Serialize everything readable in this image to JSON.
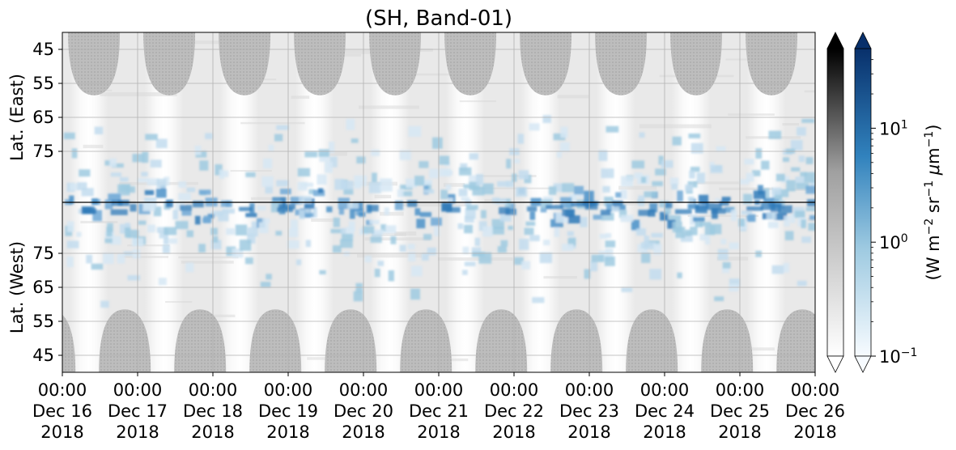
{
  "chart_data": {
    "type": "heatmap",
    "title": "(SH, Band-01)",
    "x_axis": {
      "ticks": [
        {
          "time": "00:00",
          "date": "Dec 16",
          "year": "2018"
        },
        {
          "time": "00:00",
          "date": "Dec 17",
          "year": "2018"
        },
        {
          "time": "00:00",
          "date": "Dec 18",
          "year": "2018"
        },
        {
          "time": "00:00",
          "date": "Dec 19",
          "year": "2018"
        },
        {
          "time": "00:00",
          "date": "Dec 20",
          "year": "2018"
        },
        {
          "time": "00:00",
          "date": "Dec 21",
          "year": "2018"
        },
        {
          "time": "00:00",
          "date": "Dec 22",
          "year": "2018"
        },
        {
          "time": "00:00",
          "date": "Dec 23",
          "year": "2018"
        },
        {
          "time": "00:00",
          "date": "Dec 24",
          "year": "2018"
        },
        {
          "time": "00:00",
          "date": "Dec 25",
          "year": "2018"
        },
        {
          "time": "00:00",
          "date": "Dec 26",
          "year": "2018"
        }
      ],
      "range": [
        "2018-12-16 00:00",
        "2018-12-26 00:00"
      ]
    },
    "y_axis_east": {
      "label": "Lat. (East)",
      "ticks": [
        "45",
        "55",
        "65",
        "75"
      ],
      "range": [
        40,
        90
      ]
    },
    "y_axis_west": {
      "label": "Lat. (West)",
      "ticks": [
        "75",
        "65",
        "55",
        "45"
      ],
      "range": [
        90,
        40
      ]
    },
    "pole_divider": "pole (90° latitude) separating east and west halves",
    "grid": true,
    "colorbar_gray": {
      "colormap": "Greys",
      "extend": "both",
      "represents": "nighttime / solar-zenith masked background"
    },
    "colorbar_blue": {
      "colormap": "Blues",
      "scale": "log",
      "label": "(W m$^{-2}$ sr$^{-1}$ $\\mu$m$^{-1}$)",
      "tick_labels": [
        {
          "base": "10",
          "exp": "1",
          "value": 10
        },
        {
          "base": "10",
          "exp": "0",
          "value": 1
        },
        {
          "base": "10",
          "exp": "−1",
          "value": 0.1
        }
      ],
      "range": [
        0.1,
        50
      ],
      "extend": "both"
    },
    "colors": {
      "no_data_dark": "#b8b8b8",
      "background_gray": "#e9e9e9",
      "bright_band": "#fbfbfb",
      "radiance_low": "#d6e8f5",
      "radiance_mid": "#6fa8d6",
      "radiance_high": "#2f7ab8",
      "divider": "#000000",
      "grid": "#b0b0b0"
    }
  }
}
